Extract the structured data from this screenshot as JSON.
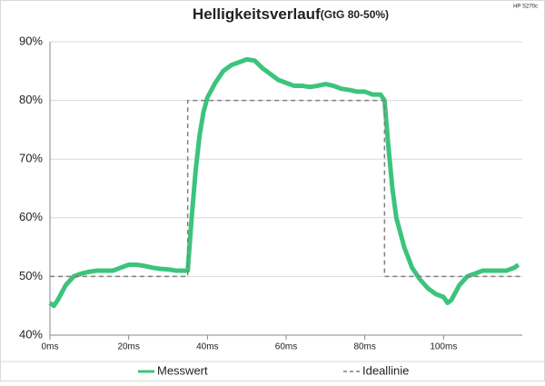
{
  "chart_data": {
    "type": "line",
    "title": "Helligkeitsverlauf",
    "subtitle": "(GtG 80-50%)",
    "note": "HP S270c",
    "series": [
      {
        "name": "Messwert",
        "color": "#3cc47c",
        "style": "solid",
        "x": [
          0,
          1,
          2,
          4,
          6,
          8,
          10,
          12,
          14,
          16,
          18,
          20,
          22,
          24,
          26,
          28,
          30,
          32,
          34,
          35,
          36,
          37,
          38,
          39,
          40,
          42,
          44,
          46,
          48,
          50,
          52,
          54,
          56,
          58,
          60,
          62,
          64,
          66,
          68,
          70,
          72,
          74,
          76,
          78,
          80,
          82,
          84,
          85,
          86,
          87,
          88,
          90,
          92,
          94,
          96,
          98,
          100,
          101,
          102,
          104,
          106,
          108,
          110,
          112,
          114,
          116,
          118,
          119
        ],
        "values": [
          45.5,
          45,
          46,
          48.5,
          50,
          50.5,
          50.8,
          51,
          51,
          51,
          51.5,
          52,
          52,
          51.8,
          51.5,
          51.3,
          51.2,
          51,
          51,
          51,
          60,
          68,
          74,
          78,
          80.5,
          83,
          85,
          86,
          86.5,
          87,
          86.8,
          85.5,
          84.5,
          83.5,
          83,
          82.5,
          82.5,
          82.3,
          82.5,
          82.8,
          82.5,
          82,
          81.8,
          81.5,
          81.5,
          81,
          81,
          80,
          72,
          65,
          60,
          55,
          51.5,
          49.5,
          48,
          47,
          46.5,
          45.5,
          46,
          48.5,
          50,
          50.5,
          51,
          51,
          51,
          51,
          51.5,
          52
        ]
      },
      {
        "name": "Ideallinie",
        "color": "#808080",
        "style": "dashed",
        "x": [
          0,
          35,
          35,
          85,
          85,
          120
        ],
        "values": [
          50,
          50,
          80,
          80,
          50,
          50
        ]
      }
    ],
    "xlim": [
      0,
      120
    ],
    "xticks": [
      {
        "value": 0,
        "label": "0ms"
      },
      {
        "value": 20,
        "label": "20ms"
      },
      {
        "value": 40,
        "label": "40ms"
      },
      {
        "value": 60,
        "label": "60ms"
      },
      {
        "value": 80,
        "label": "80ms"
      },
      {
        "value": 100,
        "label": "100ms"
      }
    ],
    "ylim": [
      40,
      90
    ],
    "yticks": [
      {
        "value": 40,
        "label": "40%"
      },
      {
        "value": 50,
        "label": "50%"
      },
      {
        "value": 60,
        "label": "60%"
      },
      {
        "value": 70,
        "label": "70%"
      },
      {
        "value": 80,
        "label": "80%"
      },
      {
        "value": 90,
        "label": "90%"
      }
    ],
    "grid": true,
    "legend": "bottom"
  }
}
